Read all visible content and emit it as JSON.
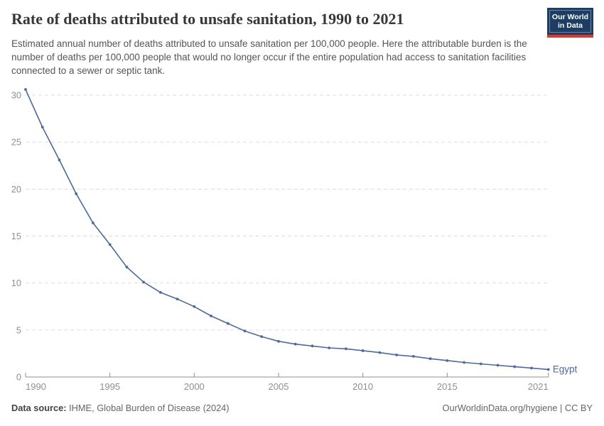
{
  "header": {
    "title": "Rate of deaths attributed to unsafe sanitation, 1990 to 2021",
    "subtitle": "Estimated annual number of deaths attributed to unsafe sanitation per 100,000 people. Here the attributable burden is the number of deaths per 100,000 people that would no longer occur if the entire population had access to sanitation facilities connected to a sewer or septic tank."
  },
  "logo": {
    "line1": "Our World",
    "line2": "in Data",
    "bg_color": "#1d3d63",
    "bar_color": "#d93a2e"
  },
  "chart_data": {
    "type": "line",
    "title": "Rate of deaths attributed to unsafe sanitation, 1990 to 2021",
    "xlabel": "",
    "ylabel": "",
    "xlim": [
      1990,
      2021
    ],
    "ylim": [
      0,
      30
    ],
    "grid": "dashed-horizontal",
    "legend_position": "end-of-line",
    "xticks": [
      1990,
      1995,
      2000,
      2005,
      2010,
      2015,
      2021
    ],
    "yticks": [
      0,
      5,
      10,
      15,
      20,
      25,
      30
    ],
    "x": [
      1990,
      1991,
      1992,
      1993,
      1994,
      1995,
      1996,
      1997,
      1998,
      1999,
      2000,
      2001,
      2002,
      2003,
      2004,
      2005,
      2006,
      2007,
      2008,
      2009,
      2010,
      2011,
      2012,
      2013,
      2014,
      2015,
      2016,
      2017,
      2018,
      2019,
      2020,
      2021
    ],
    "series": [
      {
        "name": "Egypt",
        "color": "#4c6a9c",
        "values": [
          30.6,
          26.6,
          23.1,
          19.5,
          16.4,
          14.1,
          11.7,
          10.1,
          9.0,
          8.3,
          7.5,
          6.5,
          5.7,
          4.9,
          4.3,
          3.8,
          3.5,
          3.3,
          3.1,
          3.0,
          2.8,
          2.6,
          2.35,
          2.2,
          1.95,
          1.75,
          1.55,
          1.4,
          1.25,
          1.1,
          0.95,
          0.8
        ]
      }
    ],
    "axis_color": "#8f8f8f",
    "grid_color": "#dddddd"
  },
  "footer": {
    "source_label": "Data source:",
    "source_text": " IHME, Global Burden of Disease (2024)",
    "right_text": "OurWorldinData.org/hygiene | CC BY"
  }
}
